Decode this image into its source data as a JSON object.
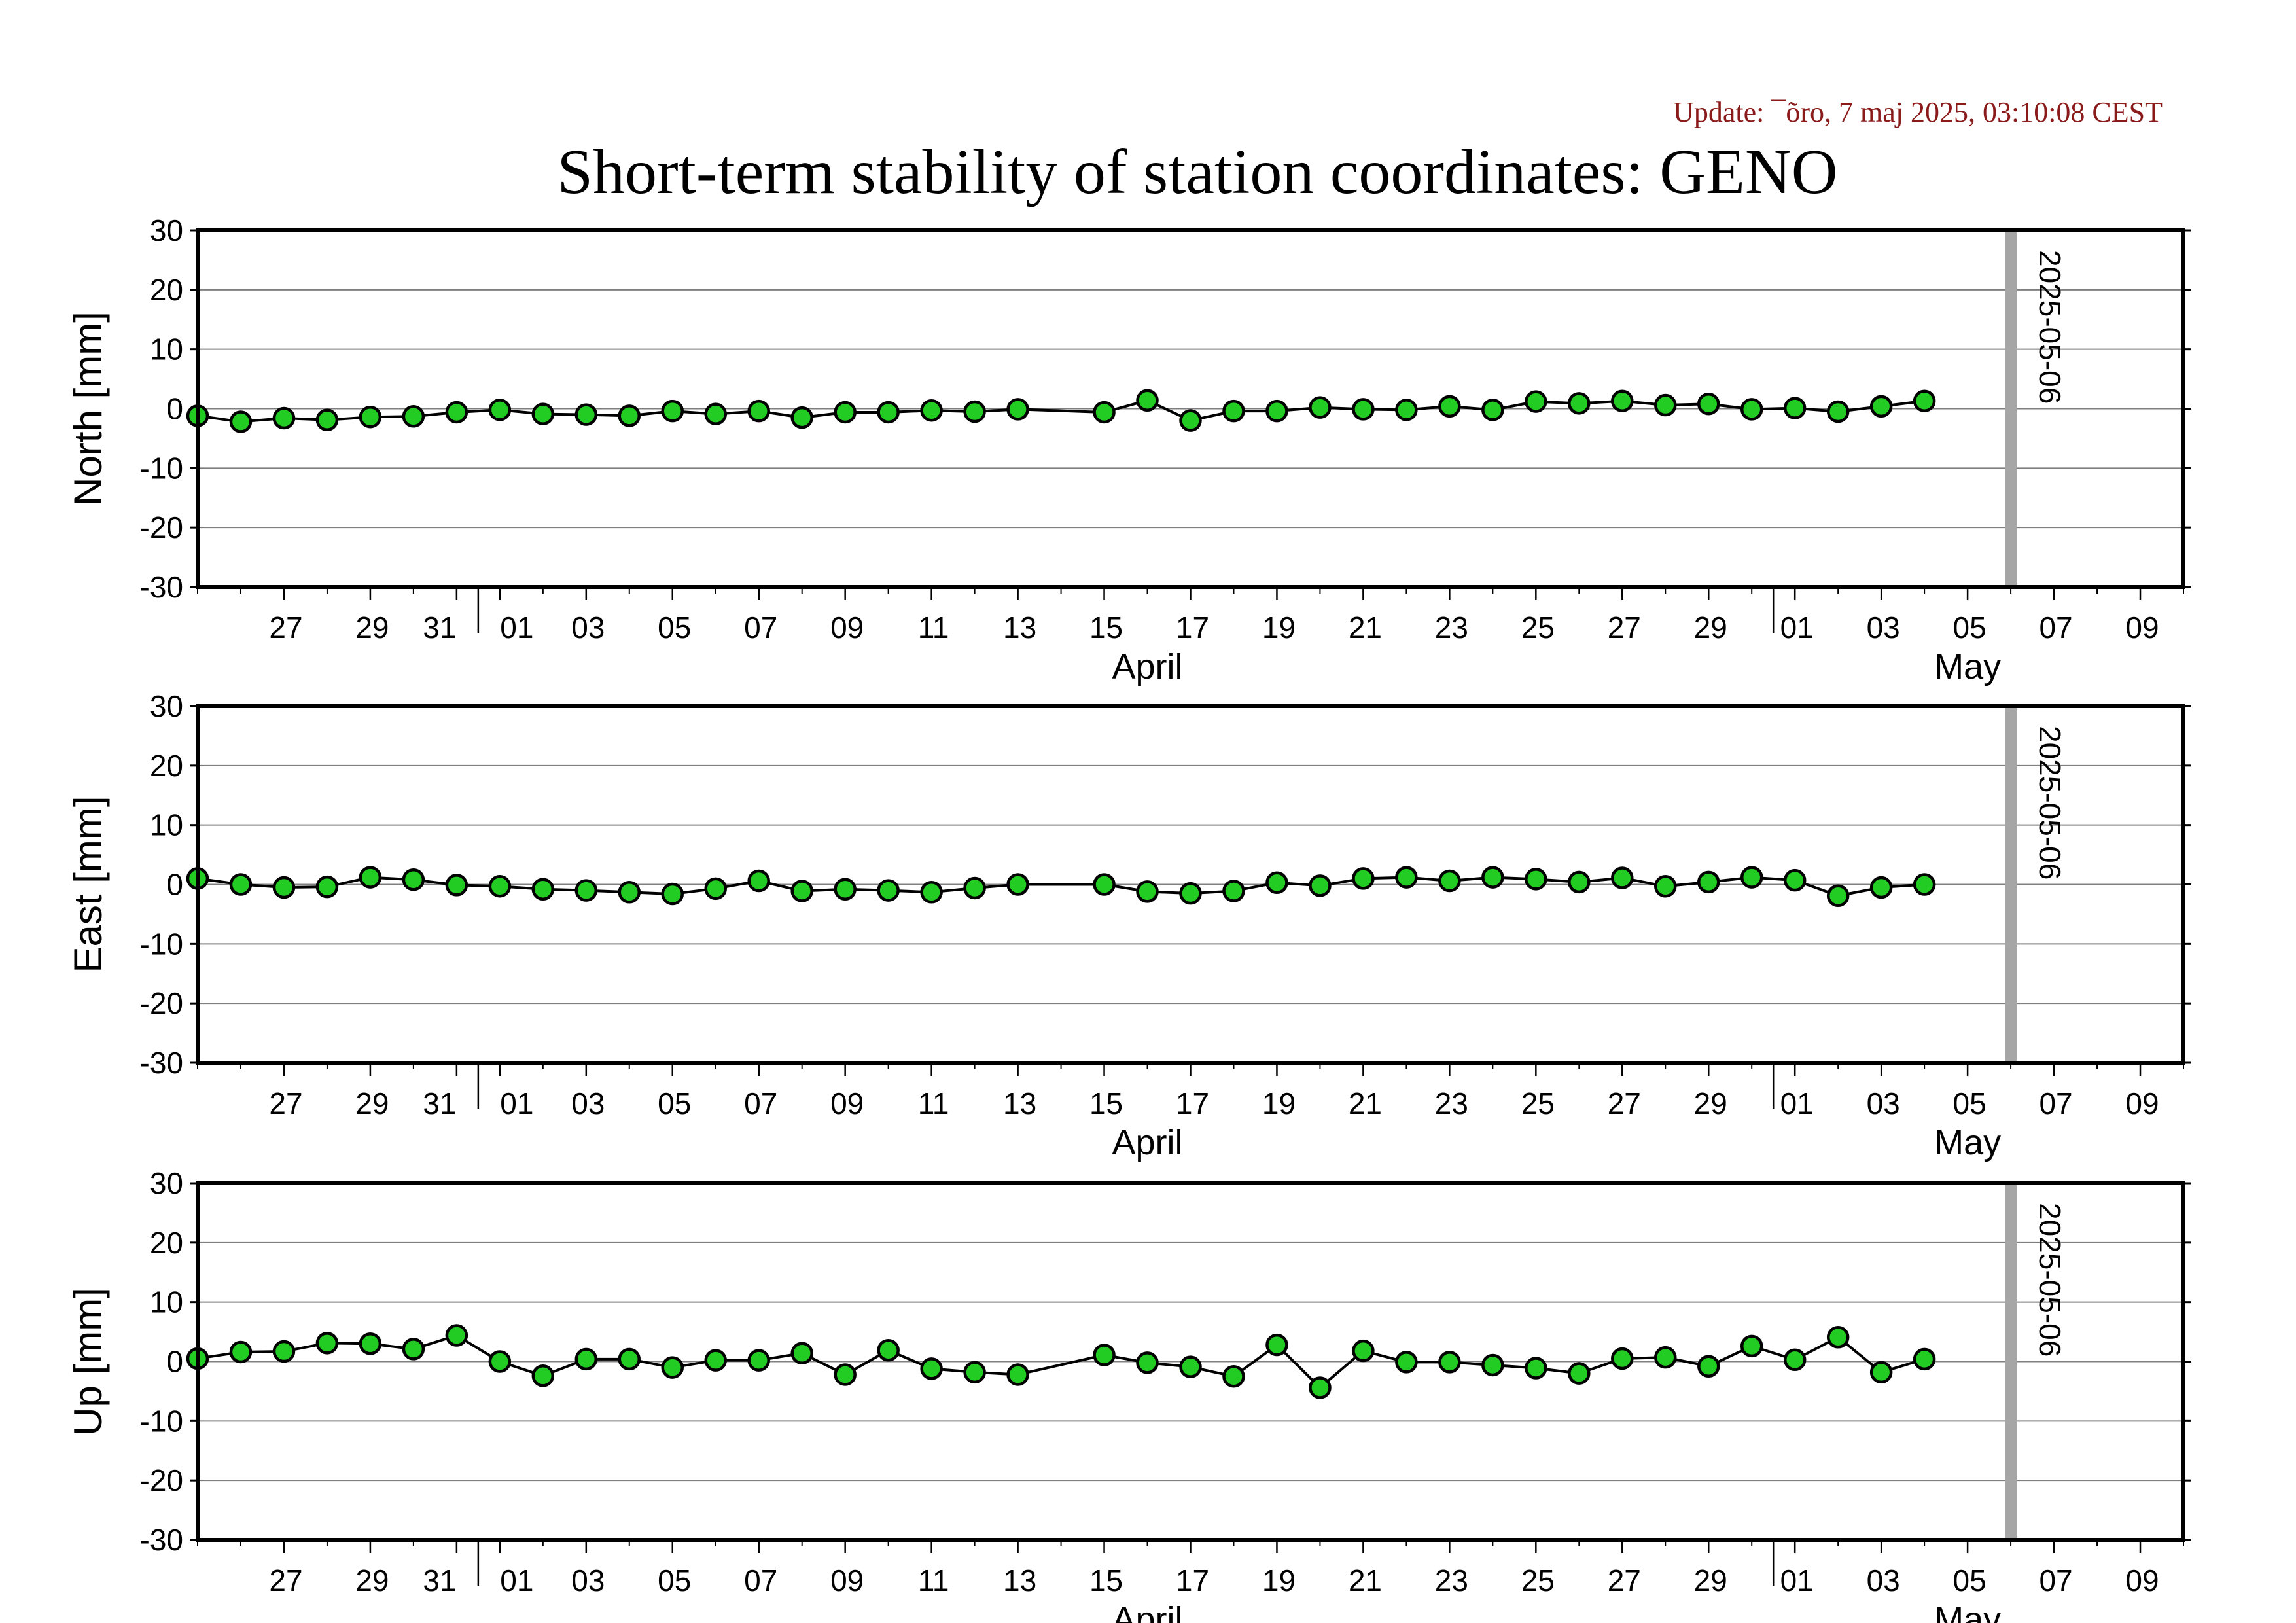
{
  "update_text": "Update: ¯õro, 7 maj 2025, 03:10:08 CEST",
  "title": "Short-term stability of station coordinates: GENO",
  "colors": {
    "point_fill": "#22cc22",
    "point_stroke": "#000000",
    "line": "#000000",
    "grid": "#7f7f7f",
    "marker_line": "#a6a6a6",
    "update_text": "#8b1a1a"
  },
  "chart_data": [
    {
      "type": "line",
      "ylabel": "North [mm]",
      "ylim": [
        -30,
        30
      ],
      "yticks": [
        -30,
        -20,
        -10,
        0,
        10,
        20,
        30
      ],
      "xlim": [
        "2025-03-25",
        "2025-05-10"
      ],
      "grid": "horizontal",
      "x_tick_labels": [
        {
          "date": "2025-03-27",
          "label": "27"
        },
        {
          "date": "2025-03-29",
          "label": "29"
        },
        {
          "date": "2025-03-31",
          "label": "31"
        },
        {
          "date": "2025-04-01",
          "label": "01"
        },
        {
          "date": "2025-04-03",
          "label": "03"
        },
        {
          "date": "2025-04-05",
          "label": "05"
        },
        {
          "date": "2025-04-07",
          "label": "07"
        },
        {
          "date": "2025-04-09",
          "label": "09"
        },
        {
          "date": "2025-04-11",
          "label": "11"
        },
        {
          "date": "2025-04-13",
          "label": "13"
        },
        {
          "date": "2025-04-15",
          "label": "15"
        },
        {
          "date": "2025-04-17",
          "label": "17"
        },
        {
          "date": "2025-04-19",
          "label": "19"
        },
        {
          "date": "2025-04-21",
          "label": "21"
        },
        {
          "date": "2025-04-23",
          "label": "23"
        },
        {
          "date": "2025-04-25",
          "label": "25"
        },
        {
          "date": "2025-04-27",
          "label": "27"
        },
        {
          "date": "2025-04-29",
          "label": "29"
        },
        {
          "date": "2025-05-01",
          "label": "01"
        },
        {
          "date": "2025-05-03",
          "label": "03"
        },
        {
          "date": "2025-05-05",
          "label": "05"
        },
        {
          "date": "2025-05-07",
          "label": "07"
        },
        {
          "date": "2025-05-09",
          "label": "09"
        }
      ],
      "months": [
        {
          "date": "2025-04-16",
          "label": "April"
        },
        {
          "date": "2025-05-05",
          "label": "May"
        }
      ],
      "month_boundaries": [
        "2025-04-01",
        "2025-05-01"
      ],
      "marker": {
        "date": "2025-05-06",
        "label": "2025-05-06"
      },
      "series": [
        {
          "x": [
            "2025-03-25",
            "2025-03-26",
            "2025-03-27",
            "2025-03-28",
            "2025-03-29",
            "2025-03-30",
            "2025-03-31",
            "2025-04-01",
            "2025-04-02",
            "2025-04-03",
            "2025-04-04",
            "2025-04-05",
            "2025-04-06",
            "2025-04-07",
            "2025-04-08",
            "2025-04-09",
            "2025-04-10",
            "2025-04-11",
            "2025-04-12",
            "2025-04-13",
            "2025-04-15",
            "2025-04-16",
            "2025-04-17",
            "2025-04-18",
            "2025-04-19",
            "2025-04-20",
            "2025-04-21",
            "2025-04-22",
            "2025-04-23",
            "2025-04-24",
            "2025-04-25",
            "2025-04-26",
            "2025-04-27",
            "2025-04-28",
            "2025-04-29",
            "2025-04-30",
            "2025-05-01",
            "2025-05-02",
            "2025-05-03",
            "2025-05-04"
          ],
          "y": [
            -1.2,
            -2.2,
            -1.6,
            -1.9,
            -1.4,
            -1.3,
            -0.6,
            -0.2,
            -0.9,
            -1.0,
            -1.2,
            -0.4,
            -0.9,
            -0.4,
            -1.5,
            -0.6,
            -0.6,
            -0.3,
            -0.5,
            -0.1,
            -0.6,
            1.4,
            -2.0,
            -0.4,
            -0.4,
            0.2,
            -0.1,
            -0.2,
            0.4,
            -0.2,
            1.2,
            0.9,
            1.3,
            0.6,
            0.8,
            -0.1,
            0.1,
            -0.5,
            0.4,
            1.3
          ]
        }
      ]
    },
    {
      "type": "line",
      "ylabel": "East [mm]",
      "ylim": [
        -30,
        30
      ],
      "yticks": [
        -30,
        -20,
        -10,
        0,
        10,
        20,
        30
      ],
      "xlim": [
        "2025-03-25",
        "2025-05-10"
      ],
      "grid": "horizontal",
      "x_tick_labels": [
        {
          "date": "2025-03-27",
          "label": "27"
        },
        {
          "date": "2025-03-29",
          "label": "29"
        },
        {
          "date": "2025-03-31",
          "label": "31"
        },
        {
          "date": "2025-04-01",
          "label": "01"
        },
        {
          "date": "2025-04-03",
          "label": "03"
        },
        {
          "date": "2025-04-05",
          "label": "05"
        },
        {
          "date": "2025-04-07",
          "label": "07"
        },
        {
          "date": "2025-04-09",
          "label": "09"
        },
        {
          "date": "2025-04-11",
          "label": "11"
        },
        {
          "date": "2025-04-13",
          "label": "13"
        },
        {
          "date": "2025-04-15",
          "label": "15"
        },
        {
          "date": "2025-04-17",
          "label": "17"
        },
        {
          "date": "2025-04-19",
          "label": "19"
        },
        {
          "date": "2025-04-21",
          "label": "21"
        },
        {
          "date": "2025-04-23",
          "label": "23"
        },
        {
          "date": "2025-04-25",
          "label": "25"
        },
        {
          "date": "2025-04-27",
          "label": "27"
        },
        {
          "date": "2025-04-29",
          "label": "29"
        },
        {
          "date": "2025-05-01",
          "label": "01"
        },
        {
          "date": "2025-05-03",
          "label": "03"
        },
        {
          "date": "2025-05-05",
          "label": "05"
        },
        {
          "date": "2025-05-07",
          "label": "07"
        },
        {
          "date": "2025-05-09",
          "label": "09"
        }
      ],
      "months": [
        {
          "date": "2025-04-16",
          "label": "April"
        },
        {
          "date": "2025-05-05",
          "label": "May"
        }
      ],
      "month_boundaries": [
        "2025-04-01",
        "2025-05-01"
      ],
      "marker": {
        "date": "2025-05-06",
        "label": "2025-05-06"
      },
      "series": [
        {
          "x": [
            "2025-03-25",
            "2025-03-26",
            "2025-03-27",
            "2025-03-28",
            "2025-03-29",
            "2025-03-30",
            "2025-03-31",
            "2025-04-01",
            "2025-04-02",
            "2025-04-03",
            "2025-04-04",
            "2025-04-05",
            "2025-04-06",
            "2025-04-07",
            "2025-04-08",
            "2025-04-09",
            "2025-04-10",
            "2025-04-11",
            "2025-04-12",
            "2025-04-13",
            "2025-04-15",
            "2025-04-16",
            "2025-04-17",
            "2025-04-18",
            "2025-04-19",
            "2025-04-20",
            "2025-04-21",
            "2025-04-22",
            "2025-04-23",
            "2025-04-24",
            "2025-04-25",
            "2025-04-26",
            "2025-04-27",
            "2025-04-28",
            "2025-04-29",
            "2025-04-30",
            "2025-05-01",
            "2025-05-02",
            "2025-05-03",
            "2025-05-04"
          ],
          "y": [
            1.0,
            0.0,
            -0.5,
            -0.4,
            1.2,
            0.8,
            -0.1,
            -0.3,
            -0.8,
            -1.0,
            -1.3,
            -1.6,
            -0.7,
            0.6,
            -1.1,
            -0.8,
            -1.0,
            -1.3,
            -0.6,
            0.0,
            0.0,
            -1.2,
            -1.5,
            -1.1,
            0.3,
            -0.2,
            1.0,
            1.2,
            0.6,
            1.2,
            0.9,
            0.4,
            1.1,
            -0.3,
            0.4,
            1.2,
            0.7,
            -1.9,
            -0.5,
            0.0
          ]
        }
      ]
    },
    {
      "type": "line",
      "ylabel": "Up [mm]",
      "ylim": [
        -30,
        30
      ],
      "yticks": [
        -30,
        -20,
        -10,
        0,
        10,
        20,
        30
      ],
      "xlim": [
        "2025-03-25",
        "2025-05-10"
      ],
      "grid": "horizontal",
      "x_tick_labels": [
        {
          "date": "2025-03-27",
          "label": "27"
        },
        {
          "date": "2025-03-29",
          "label": "29"
        },
        {
          "date": "2025-03-31",
          "label": "31"
        },
        {
          "date": "2025-04-01",
          "label": "01"
        },
        {
          "date": "2025-04-03",
          "label": "03"
        },
        {
          "date": "2025-04-05",
          "label": "05"
        },
        {
          "date": "2025-04-07",
          "label": "07"
        },
        {
          "date": "2025-04-09",
          "label": "09"
        },
        {
          "date": "2025-04-11",
          "label": "11"
        },
        {
          "date": "2025-04-13",
          "label": "13"
        },
        {
          "date": "2025-04-15",
          "label": "15"
        },
        {
          "date": "2025-04-17",
          "label": "17"
        },
        {
          "date": "2025-04-19",
          "label": "19"
        },
        {
          "date": "2025-04-21",
          "label": "21"
        },
        {
          "date": "2025-04-23",
          "label": "23"
        },
        {
          "date": "2025-04-25",
          "label": "25"
        },
        {
          "date": "2025-04-27",
          "label": "27"
        },
        {
          "date": "2025-04-29",
          "label": "29"
        },
        {
          "date": "2025-05-01",
          "label": "01"
        },
        {
          "date": "2025-05-03",
          "label": "03"
        },
        {
          "date": "2025-05-05",
          "label": "05"
        },
        {
          "date": "2025-05-07",
          "label": "07"
        },
        {
          "date": "2025-05-09",
          "label": "09"
        }
      ],
      "months": [
        {
          "date": "2025-04-16",
          "label": "April"
        },
        {
          "date": "2025-05-05",
          "label": "May"
        }
      ],
      "month_boundaries": [
        "2025-04-01",
        "2025-05-01"
      ],
      "marker": {
        "date": "2025-05-06",
        "label": "2025-05-06"
      },
      "series": [
        {
          "x": [
            "2025-03-25",
            "2025-03-26",
            "2025-03-27",
            "2025-03-28",
            "2025-03-29",
            "2025-03-30",
            "2025-03-31",
            "2025-04-01",
            "2025-04-02",
            "2025-04-03",
            "2025-04-04",
            "2025-04-05",
            "2025-04-06",
            "2025-04-07",
            "2025-04-08",
            "2025-04-09",
            "2025-04-10",
            "2025-04-11",
            "2025-04-12",
            "2025-04-13",
            "2025-04-15",
            "2025-04-16",
            "2025-04-17",
            "2025-04-18",
            "2025-04-19",
            "2025-04-20",
            "2025-04-21",
            "2025-04-22",
            "2025-04-23",
            "2025-04-24",
            "2025-04-25",
            "2025-04-26",
            "2025-04-27",
            "2025-04-28",
            "2025-04-29",
            "2025-04-30",
            "2025-05-01",
            "2025-05-02",
            "2025-05-03",
            "2025-05-04"
          ],
          "y": [
            0.5,
            1.6,
            1.7,
            3.1,
            3.0,
            2.1,
            4.4,
            0.0,
            -2.4,
            0.4,
            0.4,
            -1.0,
            0.2,
            0.2,
            1.4,
            -2.2,
            1.9,
            -1.2,
            -1.8,
            -2.2,
            1.1,
            -0.2,
            -0.9,
            -2.5,
            2.8,
            -4.4,
            1.8,
            -0.1,
            -0.1,
            -0.6,
            -1.1,
            -2.0,
            0.5,
            0.7,
            -0.8,
            2.6,
            0.3,
            4.1,
            -1.8,
            0.4
          ]
        }
      ]
    }
  ]
}
